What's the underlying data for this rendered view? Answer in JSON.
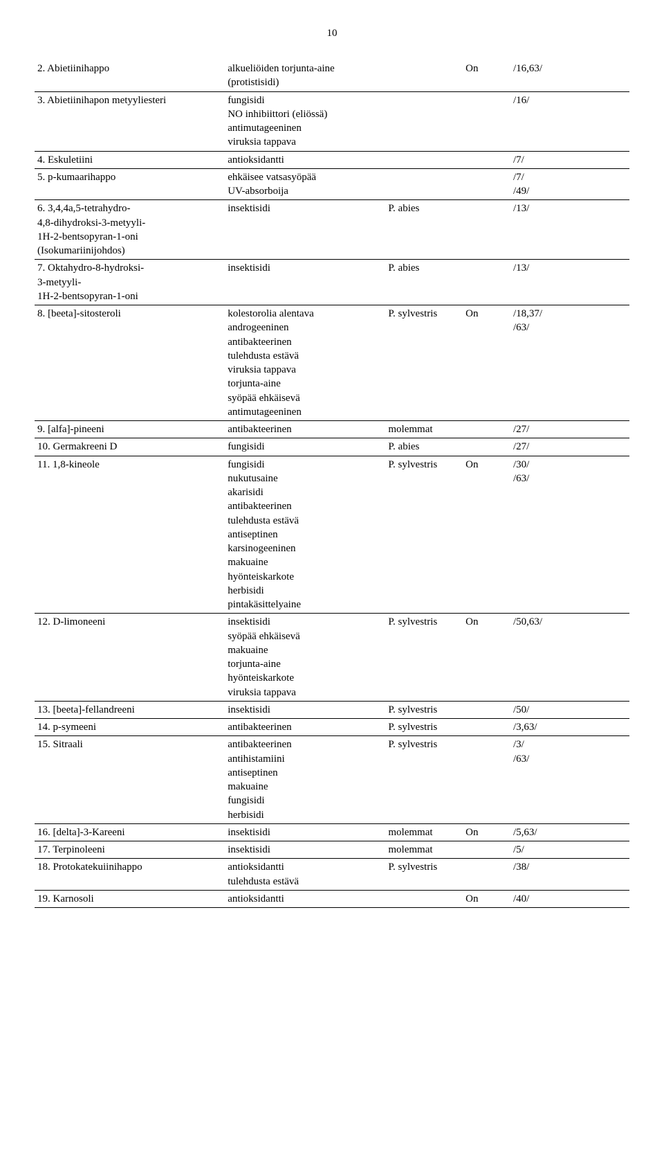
{
  "page_number": "10",
  "rows": [
    {
      "name": "2. Abietiinihappo",
      "desc": "alkueliöiden torjunta-aine\n(protistisidi)",
      "species": "",
      "on": "On",
      "ref": "/16,63/"
    },
    {
      "name": "3. Abietiinihapon metyyliesteri",
      "desc": "fungisidi\nNO inhibiittori (eliössä)\nantimutageeninen\nviruksia tappava",
      "species": "",
      "on": "",
      "ref": "/16/"
    },
    {
      "name": "4. Eskuletiini",
      "desc": "antioksidantti",
      "species": "",
      "on": "",
      "ref": "/7/"
    },
    {
      "name": "5. p-kumaarihappo",
      "desc": "ehkäisee vatsasyöpää\nUV-absorboija",
      "species": "",
      "on": "",
      "ref": "/7/\n/49/"
    },
    {
      "name": "6. 3,4,4a,5-tetrahydro-\n4,8-dihydroksi-3-metyyli-\n1H-2-bentsopyran-1-oni\n(Isokumariinijohdos)",
      "desc": "insektisidi",
      "species": "P. abies",
      "on": "",
      "ref": "/13/"
    },
    {
      "name": "7. Oktahydro-8-hydroksi-\n3-metyyli-\n1H-2-bentsopyran-1-oni",
      "desc": "insektisidi",
      "species": "P. abies",
      "on": "",
      "ref": "/13/"
    },
    {
      "name": "8. [beeta]-sitosteroli",
      "desc": "kolestorolia alentava\nandrogeeninen\nantibakteerinen\ntulehdusta estävä\nviruksia tappava\ntorjunta-aine\nsyöpää ehkäisevä\nantimutageeninen",
      "species": "P. sylvestris",
      "on": "On",
      "ref": "/18,37/\n/63/"
    },
    {
      "name": "9. [alfa]-pineeni",
      "desc": "antibakteerinen",
      "species": "molemmat",
      "on": "",
      "ref": "/27/"
    },
    {
      "name": "10. Germakreeni D",
      "desc": "fungisidi",
      "species": "P. abies",
      "on": "",
      "ref": "/27/"
    },
    {
      "name": "11. 1,8-kineole",
      "desc": "fungisidi\nnukutusaine\nakarisidi\nantibakteerinen\ntulehdusta estävä\nantiseptinen\nkarsinogeeninen\nmakuaine\nhyönteiskarkote\nherbisidi\npintakäsittelyaine",
      "species": "P. sylvestris",
      "on": "On",
      "ref": "/30/\n/63/"
    },
    {
      "name": "12. D-limoneeni",
      "desc": "insektisidi\nsyöpää ehkäisevä\nmakuaine\ntorjunta-aine\nhyönteiskarkote\nviruksia tappava",
      "species": "P. sylvestris",
      "on": "On",
      "ref": "/50,63/"
    },
    {
      "name": "13. [beeta]-fellandreeni",
      "desc": "insektisidi",
      "species": "P. sylvestris",
      "on": "",
      "ref": "/50/"
    },
    {
      "name": "14. p-symeeni",
      "desc": "antibakteerinen",
      "species": "P. sylvestris",
      "on": "",
      "ref": "/3,63/"
    },
    {
      "name": "15. Sitraali",
      "desc": "antibakteerinen\nantihistamiini\nantiseptinen\nmakuaine\nfungisidi\nherbisidi",
      "species": "P. sylvestris",
      "on": "",
      "ref": "/3/\n/63/"
    },
    {
      "name": "16. [delta]-3-Kareeni",
      "desc": "insektisidi",
      "species": "molemmat",
      "on": "On",
      "ref": "/5,63/"
    },
    {
      "name": "17. Terpinoleeni",
      "desc": "insektisidi",
      "species": "molemmat",
      "on": "",
      "ref": "/5/"
    },
    {
      "name": "18. Protokatekuiinihappo",
      "desc": "antioksidantti\ntulehdusta estävä",
      "species": "P. sylvestris",
      "on": "",
      "ref": "/38/"
    },
    {
      "name": "19. Karnosoli",
      "desc": "antioksidantti",
      "species": "",
      "on": "On",
      "ref": "/40/"
    }
  ]
}
